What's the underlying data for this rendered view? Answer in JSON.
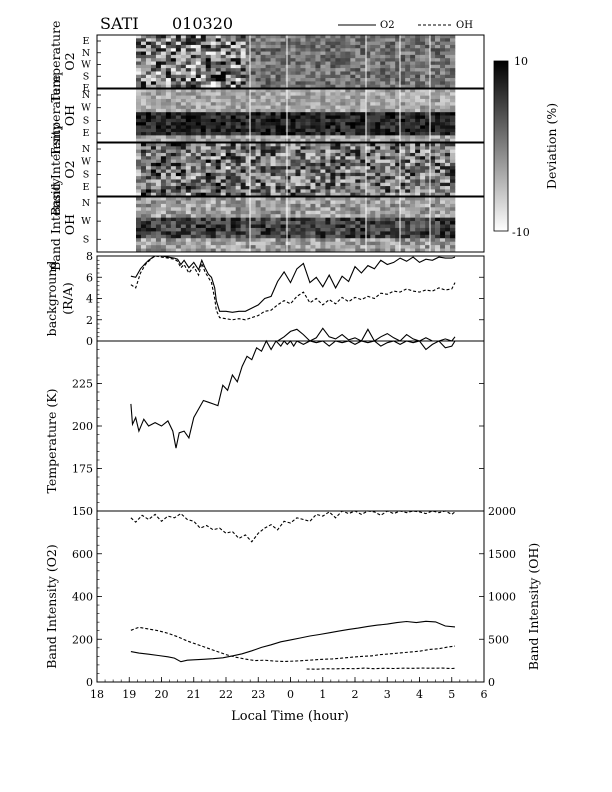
{
  "title": "SATI",
  "date_code": "010320",
  "legend": [
    {
      "name": "O2",
      "style": "solid"
    },
    {
      "name": "OH",
      "style": "dashed"
    }
  ],
  "colorbar": {
    "label": "Deviation (%)",
    "max_label": "10",
    "min_label": "-10",
    "range": [
      -10,
      10
    ]
  },
  "keogram_panels": [
    {
      "id": "temp-o2",
      "label_line1": "Temperature",
      "label_line2": "O2",
      "directions": [
        "E",
        "N",
        "W",
        "S",
        "E"
      ],
      "seed": 11,
      "profile": "noisy"
    },
    {
      "id": "temp-oh",
      "label_line1": "Temperature",
      "label_line2": "OH",
      "directions": [
        "N",
        "W",
        "S",
        "E"
      ],
      "seed": 23,
      "profile": "banded"
    },
    {
      "id": "int-o2",
      "label_line1": "Band Intensity",
      "label_line2": "O2",
      "directions": [
        "N",
        "W",
        "S",
        "E"
      ],
      "seed": 37,
      "profile": "mixed"
    },
    {
      "id": "int-oh",
      "label_line1": "Band Intensity",
      "label_line2": "OH",
      "directions": [
        "N",
        "W",
        "S"
      ],
      "seed": 53,
      "profile": "banded2"
    }
  ],
  "x_axis": {
    "label": "Local Time (hour)",
    "ticks": [
      "18",
      "19",
      "20",
      "21",
      "22",
      "23",
      "0",
      "1",
      "2",
      "3",
      "4",
      "5",
      "6"
    ],
    "range": [
      18,
      30
    ]
  },
  "chart_data": [
    {
      "type": "line",
      "id": "background",
      "ylabel_line1": "background",
      "ylabel_line2": "(R/A)",
      "ylim": [
        0,
        8
      ],
      "yticks": [
        "0",
        "2",
        "4",
        "6",
        "8"
      ],
      "series": [
        {
          "name": "O2",
          "style": "solid",
          "x": [
            19.05,
            19.2,
            19.35,
            19.5,
            19.6,
            19.7,
            19.8,
            20.0,
            20.2,
            20.4,
            20.5,
            20.6,
            20.7,
            20.85,
            21.0,
            21.15,
            21.25,
            21.35,
            21.45,
            21.55,
            21.65,
            21.7,
            21.8,
            22.0,
            22.2,
            22.4,
            22.6,
            22.8,
            23.0,
            23.2,
            23.4,
            23.6,
            23.8,
            24.0,
            24.2,
            24.4,
            24.6,
            24.8,
            25.0,
            25.2,
            25.4,
            25.6,
            25.8,
            26.0,
            26.2,
            26.4,
            26.6,
            26.8,
            27.0,
            27.2,
            27.4,
            27.6,
            27.8,
            28.0,
            28.2,
            28.4,
            28.6,
            28.8,
            29.0,
            29.1
          ],
          "y": [
            6.1,
            6.0,
            6.8,
            7.3,
            7.6,
            7.8,
            8.0,
            8.0,
            7.9,
            7.8,
            7.7,
            7.2,
            7.6,
            6.9,
            7.4,
            6.7,
            7.6,
            6.9,
            6.3,
            6.0,
            5.0,
            3.8,
            2.8,
            2.8,
            2.7,
            2.8,
            2.8,
            3.1,
            3.4,
            4.0,
            4.2,
            5.6,
            6.5,
            5.5,
            6.8,
            7.3,
            5.5,
            6.0,
            5.1,
            6.2,
            5.0,
            6.1,
            5.6,
            7.0,
            6.4,
            7.1,
            6.8,
            7.6,
            7.2,
            7.4,
            7.8,
            7.5,
            7.9,
            7.4,
            7.7,
            7.6,
            7.9,
            7.8,
            7.8,
            7.9
          ]
        },
        {
          "name": "OH",
          "style": "dashed",
          "x": [
            19.05,
            19.2,
            19.35,
            19.5,
            19.6,
            19.7,
            19.8,
            20.0,
            20.2,
            20.4,
            20.5,
            20.6,
            20.7,
            20.85,
            21.0,
            21.15,
            21.25,
            21.35,
            21.45,
            21.55,
            21.65,
            21.7,
            21.8,
            22.0,
            22.2,
            22.4,
            22.6,
            22.8,
            23.0,
            23.2,
            23.4,
            23.6,
            23.8,
            24.0,
            24.2,
            24.4,
            24.6,
            24.8,
            25.0,
            25.2,
            25.4,
            25.6,
            25.8,
            26.0,
            26.2,
            26.4,
            26.6,
            26.8,
            27.0,
            27.2,
            27.4,
            27.6,
            27.8,
            28.0,
            28.2,
            28.4,
            28.6,
            28.8,
            29.0,
            29.1
          ],
          "y": [
            5.3,
            5.0,
            6.4,
            7.2,
            7.5,
            7.8,
            8.0,
            7.9,
            7.8,
            7.7,
            7.5,
            6.9,
            7.2,
            6.4,
            7.0,
            6.2,
            7.3,
            6.5,
            6.0,
            5.5,
            4.0,
            2.9,
            2.2,
            2.1,
            2.0,
            2.1,
            2.0,
            2.2,
            2.4,
            2.8,
            2.9,
            3.4,
            3.8,
            3.5,
            4.2,
            4.6,
            3.6,
            4.0,
            3.4,
            3.9,
            3.5,
            4.1,
            3.7,
            4.1,
            3.9,
            4.2,
            4.0,
            4.5,
            4.4,
            4.7,
            4.6,
            4.9,
            4.7,
            4.6,
            4.8,
            4.7,
            5.0,
            4.8,
            4.9,
            5.5
          ]
        },
        {
          "name": "O2 (lower)",
          "style": "solid",
          "x": [
            23.6,
            23.8,
            24.0,
            24.2,
            24.4,
            24.6,
            24.8,
            25.0,
            25.2,
            25.4,
            25.6,
            25.8,
            26.0,
            26.2,
            26.4,
            26.6,
            26.8,
            27.0,
            27.2,
            27.4,
            27.6,
            27.8,
            28.0,
            28.2,
            28.4,
            28.6,
            28.8,
            29.0,
            29.1
          ],
          "y": [
            0.0,
            0.4,
            0.9,
            1.1,
            0.6,
            0.0,
            0.3,
            1.2,
            0.4,
            0.2,
            0.6,
            0.1,
            0.3,
            0.0,
            1.1,
            0.0,
            0.4,
            0.7,
            0.3,
            0.0,
            0.6,
            0.2,
            0.0,
            0.3,
            0.0,
            0.0,
            0.2,
            0.0,
            0.4
          ]
        }
      ]
    },
    {
      "type": "line",
      "id": "temperature",
      "ylabel": "Temperature (K)",
      "ylim": [
        150,
        250
      ],
      "yticks": [
        "150",
        "175",
        "200",
        "225"
      ],
      "series": [
        {
          "name": "O2",
          "style": "solid",
          "x": [
            19.05,
            19.1,
            19.2,
            19.3,
            19.45,
            19.6,
            19.8,
            20.0,
            20.2,
            20.35,
            20.45,
            20.55,
            20.7,
            20.85,
            21.0,
            21.15,
            21.3,
            21.45,
            21.6,
            21.75,
            21.9,
            22.05,
            22.2,
            22.35,
            22.5,
            22.65,
            22.8,
            22.95,
            23.1,
            23.25,
            23.4,
            23.55,
            23.7,
            23.8,
            23.9,
            24.0,
            24.1,
            24.2
          ],
          "y": [
            213,
            201,
            205,
            197,
            204,
            200,
            202,
            200,
            203,
            197,
            187,
            196,
            197,
            193,
            205,
            210,
            215,
            214,
            213,
            212,
            224,
            221,
            230,
            226,
            235,
            241,
            239,
            246,
            244,
            250,
            245,
            250,
            247,
            250,
            248,
            250,
            247,
            250
          ]
        },
        {
          "name": "O2 (top)",
          "style": "solid",
          "x": [
            24.2,
            24.4,
            24.6,
            24.8,
            25.0,
            25.2,
            25.4,
            25.6,
            25.8,
            26.0,
            26.2,
            26.4,
            26.6,
            26.8,
            27.0,
            27.2,
            27.4,
            27.6,
            27.8,
            28.0,
            28.2,
            28.4,
            28.6,
            28.8,
            29.0,
            29.1
          ],
          "y": [
            250,
            248,
            250,
            249,
            250,
            247,
            250,
            249,
            250,
            248,
            250,
            249,
            250,
            247,
            249,
            250,
            248,
            250,
            249,
            250,
            245,
            248,
            250,
            246,
            247,
            250
          ]
        }
      ]
    },
    {
      "type": "line",
      "id": "band-intensity",
      "ylabel_left": "Band Intensity (O2)",
      "ylabel_right": "Band Intensity (OH)",
      "ylim": [
        0,
        800
      ],
      "ylim_right": [
        0,
        2000
      ],
      "yticks": [
        "0",
        "200",
        "400",
        "600"
      ],
      "yticks_right": [
        "0",
        "500",
        "1000",
        "1500",
        "2000"
      ],
      "series": [
        {
          "name": "O2",
          "style": "solid",
          "axis": "left",
          "x": [
            19.05,
            19.3,
            19.6,
            19.9,
            20.2,
            20.4,
            20.6,
            20.8,
            21.0,
            21.3,
            21.6,
            21.9,
            22.2,
            22.5,
            22.8,
            23.1,
            23.4,
            23.7,
            24.0,
            24.3,
            24.6,
            24.9,
            25.2,
            25.5,
            25.8,
            26.1,
            26.4,
            26.7,
            27.0,
            27.3,
            27.6,
            27.9,
            28.2,
            28.5,
            28.8,
            29.1
          ],
          "y": [
            142,
            135,
            130,
            124,
            118,
            112,
            95,
            102,
            104,
            106,
            109,
            113,
            122,
            132,
            146,
            162,
            174,
            188,
            197,
            206,
            215,
            222,
            230,
            238,
            246,
            252,
            260,
            266,
            271,
            278,
            283,
            278,
            284,
            281,
            262,
            258
          ]
        },
        {
          "name": "OH",
          "style": "dashed",
          "axis": "right",
          "x": [
            19.05,
            19.3,
            19.6,
            19.9,
            20.2,
            20.5,
            20.8,
            21.1,
            21.4,
            21.7,
            22.0,
            22.3,
            22.6,
            22.9,
            23.2,
            23.5,
            23.8,
            24.1,
            24.4,
            24.7,
            25.0,
            25.3,
            25.6,
            25.9,
            26.2,
            26.5,
            26.8,
            27.1,
            27.4,
            27.7,
            28.0,
            28.3,
            28.6,
            28.9,
            29.1
          ],
          "y": [
            605,
            640,
            620,
            600,
            570,
            530,
            480,
            440,
            400,
            360,
            320,
            290,
            268,
            250,
            255,
            245,
            240,
            245,
            250,
            258,
            265,
            270,
            280,
            290,
            300,
            305,
            320,
            330,
            340,
            350,
            360,
            380,
            390,
            410,
            420
          ]
        },
        {
          "name": "OH (upper)",
          "style": "dashed",
          "axis": "right",
          "x": [
            19.05,
            19.2,
            19.4,
            19.6,
            19.8,
            20.0,
            20.2,
            20.4,
            20.6,
            20.8,
            21.0,
            21.2,
            21.4,
            21.6,
            21.8,
            22.0,
            22.2,
            22.4,
            22.6,
            22.8,
            23.0,
            23.2,
            23.4,
            23.6,
            23.8,
            24.0,
            24.2,
            24.4,
            24.6,
            24.8,
            25.0,
            25.2,
            25.4,
            25.6,
            25.8,
            26.0,
            26.2,
            26.4,
            26.6,
            26.8,
            27.0,
            27.2,
            27.4,
            27.6,
            27.8,
            28.0,
            28.2,
            28.4,
            28.6,
            28.8,
            29.0,
            29.1
          ],
          "y": [
            1920,
            1870,
            1950,
            1900,
            1960,
            1880,
            1940,
            1920,
            1970,
            1900,
            1880,
            1800,
            1830,
            1780,
            1800,
            1740,
            1760,
            1680,
            1720,
            1640,
            1740,
            1800,
            1840,
            1780,
            1880,
            1860,
            1920,
            1900,
            1880,
            1960,
            1940,
            1990,
            1920,
            2000,
            1970,
            2000,
            1960,
            2000,
            1990,
            1950,
            2000,
            1970,
            2000,
            1980,
            2000,
            1990,
            1970,
            2000,
            1980,
            2000,
            1960,
            1990
          ]
        },
        {
          "name": "OH (top)",
          "style": "dashed",
          "axis": "right",
          "x": [
            24.5,
            24.8,
            25.1,
            25.4,
            25.7,
            26.0,
            26.3,
            26.6,
            26.9,
            27.2,
            27.5,
            27.8,
            28.1,
            28.4,
            28.7,
            29.0,
            29.1
          ],
          "y": [
            152,
            150,
            155,
            153,
            158,
            155,
            162,
            156,
            160,
            158,
            161,
            160,
            162,
            161,
            163,
            158,
            160
          ]
        }
      ]
    }
  ]
}
